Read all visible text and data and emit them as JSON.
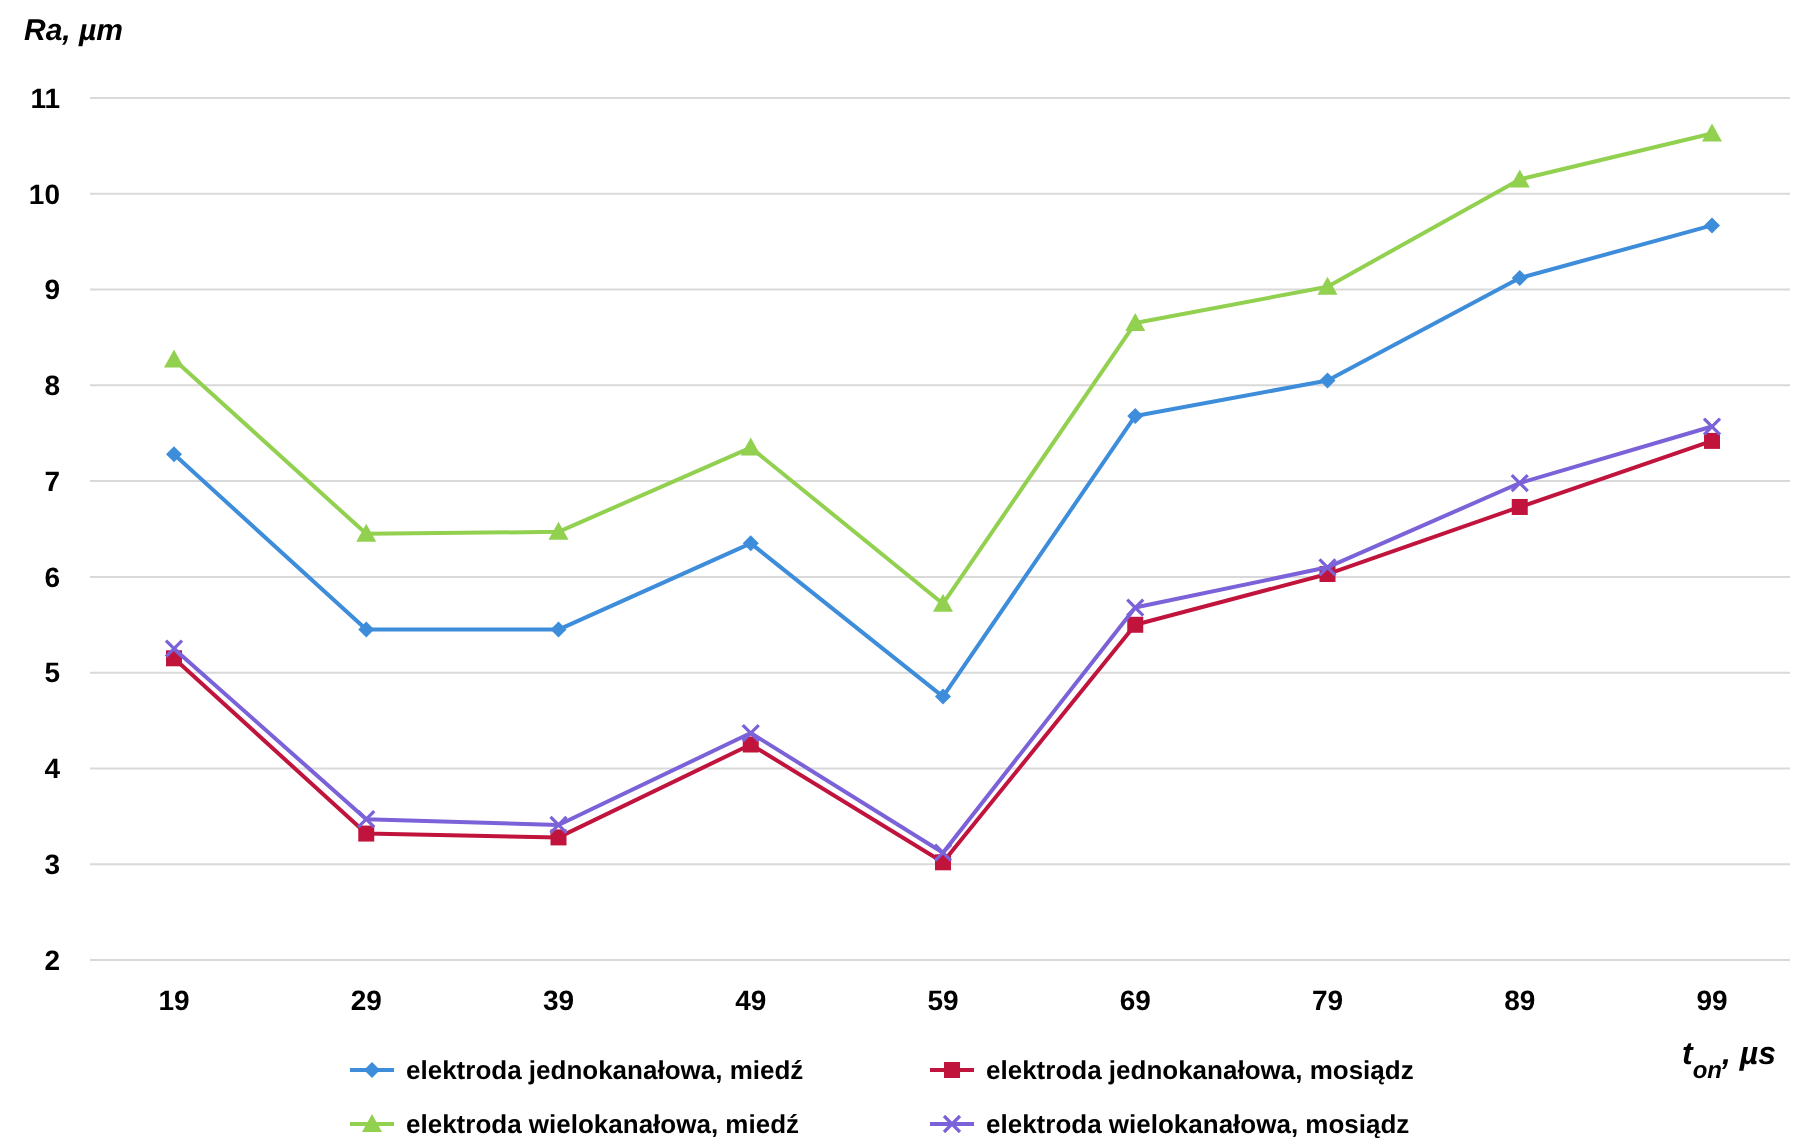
{
  "chart_data": {
    "type": "line",
    "ylabel": "Ra, µm",
    "xlabel": "t$_{on}$, µs",
    "categories": [
      "19",
      "29",
      "39",
      "49",
      "59",
      "69",
      "79",
      "89",
      "99"
    ],
    "ylim": [
      2,
      11
    ],
    "yticks": [
      2,
      3,
      4,
      5,
      6,
      7,
      8,
      9,
      10,
      11
    ],
    "grid": "y",
    "legend": "bottom",
    "series": [
      {
        "name": "elektroda jednokanałowa, miedź",
        "color": "#3d8ddb",
        "marker": "diamond",
        "values": [
          7.28,
          5.45,
          5.45,
          6.35,
          4.75,
          7.68,
          8.05,
          9.12,
          9.67
        ]
      },
      {
        "name": "elektroda jednokanałowa, mosiądz",
        "color": "#c0143c",
        "marker": "square",
        "values": [
          5.15,
          3.32,
          3.28,
          4.25,
          3.02,
          5.5,
          6.03,
          6.73,
          7.42
        ]
      },
      {
        "name": "elektroda wielokanałowa, miedź",
        "color": "#92d050",
        "marker": "triangle",
        "values": [
          8.27,
          6.45,
          6.47,
          7.35,
          5.72,
          8.65,
          9.03,
          10.15,
          10.63
        ]
      },
      {
        "name": "elektroda wielokanałowa, mosiądz",
        "color": "#7b62d8",
        "marker": "cross",
        "values": [
          5.25,
          3.47,
          3.41,
          4.37,
          3.12,
          5.68,
          6.1,
          6.98,
          7.57
        ]
      }
    ]
  }
}
